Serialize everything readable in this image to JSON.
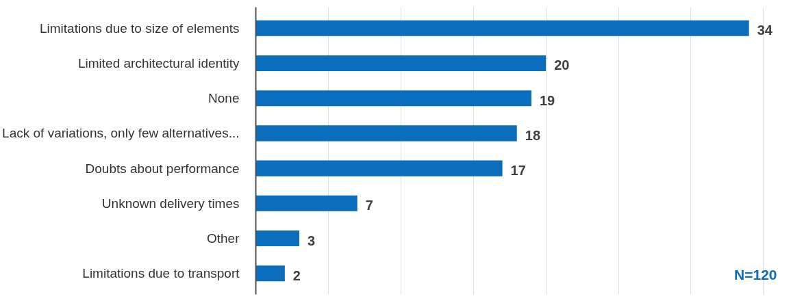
{
  "chart_data": {
    "type": "bar",
    "orientation": "horizontal",
    "categories": [
      "Limitations due to size of elements",
      "Limited architectural identity",
      "None",
      "Lack of variations, only few alternatives...",
      "Doubts about performance",
      "Unknown delivery times",
      "Other",
      "Limitations due to transport"
    ],
    "values": [
      34,
      20,
      19,
      18,
      17,
      7,
      3,
      2
    ],
    "color": "#0a6ebd",
    "data_labels": true,
    "grid": "x",
    "tick_labels": "y",
    "annotations": [
      "N=120"
    ]
  }
}
